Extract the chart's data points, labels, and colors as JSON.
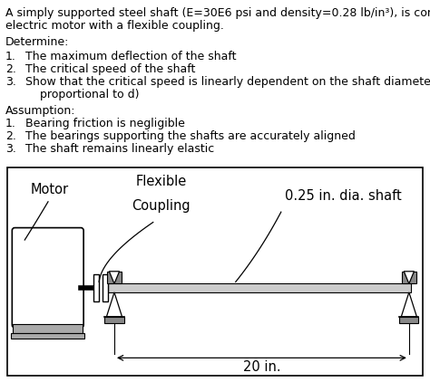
{
  "title_line1": "A simply supported steel shaft (E=30E6 psi and density=0.28 lb/in³), is connected to an",
  "title_line2": "electric motor with a flexible coupling.",
  "determine_header": "Determine:",
  "determine_items": [
    "The maximum deflection of the shaft",
    "The critical speed of the shaft",
    "Show that the critical speed is linearly dependent on the shaft diameter (ωc is"
  ],
  "determine_item3_cont": "    proportional to d)",
  "assumption_header": "Assumption:",
  "assumption_items": [
    "Bearing friction is negligible",
    "The bearings supporting the shafts are accurately aligned",
    "The shaft remains linearly elastic"
  ],
  "label_motor": "Motor",
  "label_coupling_line1": "Flexible",
  "label_coupling_line2": "Coupling",
  "label_shaft": "0.25 in. dia. shaft",
  "label_length": "20 in.",
  "bg_color": "#ffffff",
  "text_color": "#000000",
  "font_size_body": 9.0,
  "font_size_diagram": 10.5
}
